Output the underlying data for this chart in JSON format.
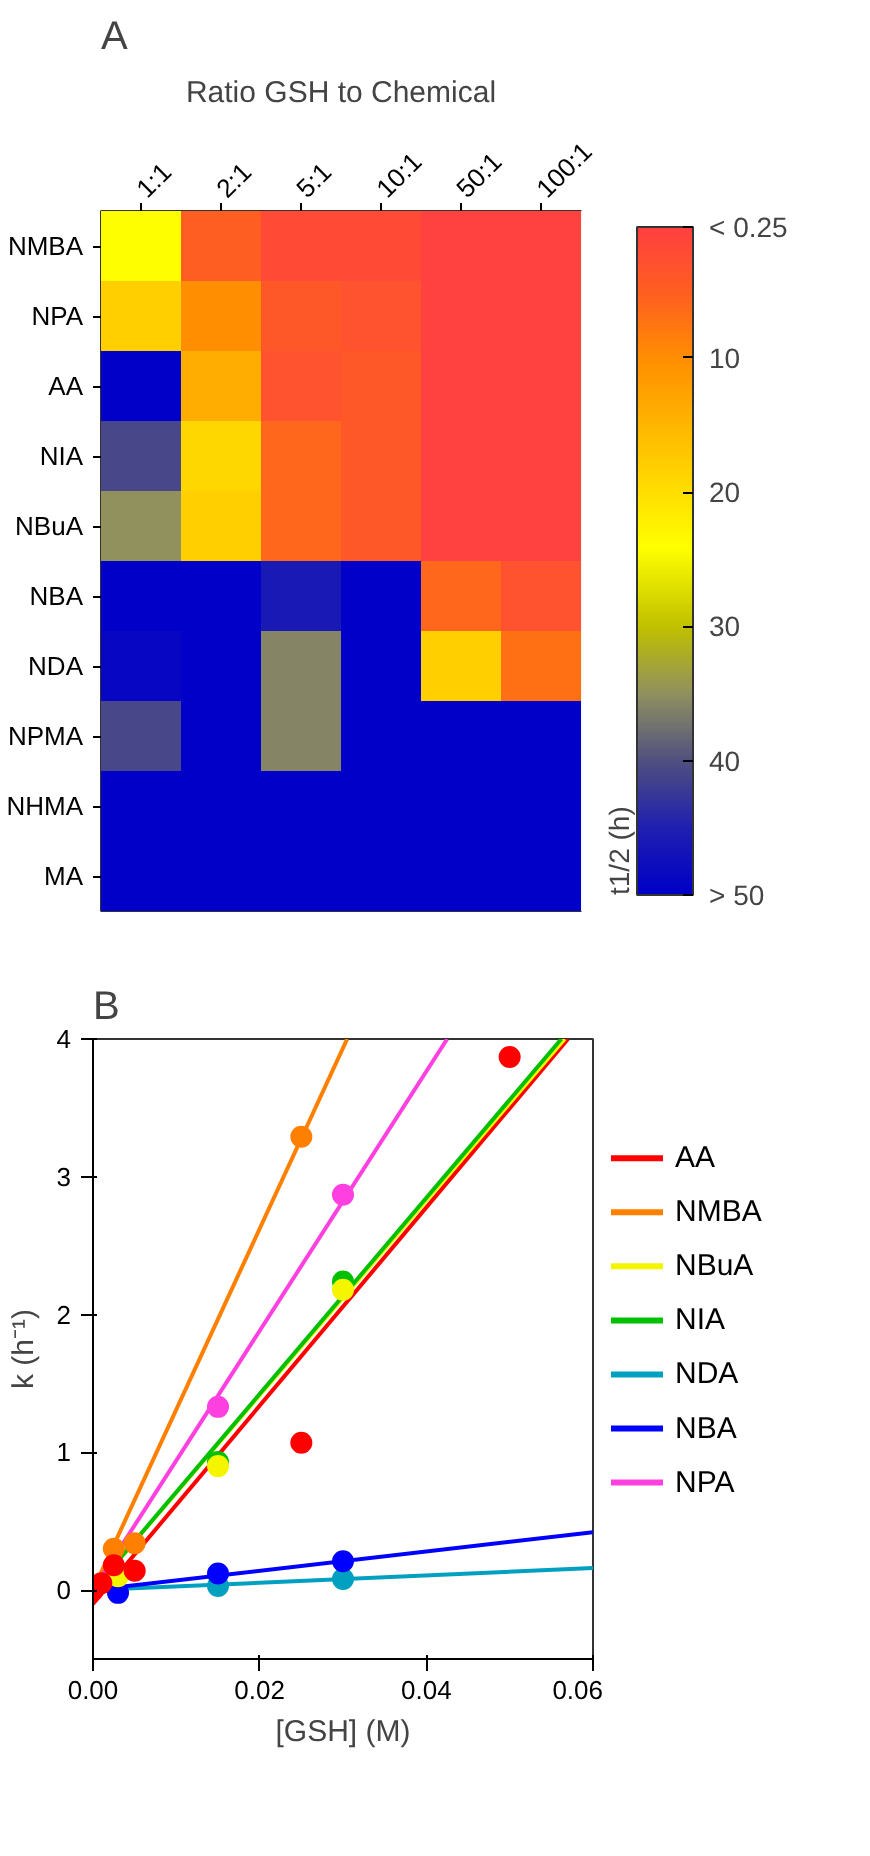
{
  "chart_data": [
    {
      "type": "heatmap",
      "title": "A",
      "xlabel": "Ratio GSH to Chemical",
      "clabel": "t1/2 (h)",
      "categories": [
        "1:1",
        "2:1",
        "5:1",
        "10:1",
        "50:1",
        "100:1"
      ],
      "y_categories": [
        "NMBA",
        "NPA",
        "AA",
        "NIA",
        "NBuA",
        "NBA",
        "NDA",
        "NPMA",
        "NHMA",
        "MA"
      ],
      "cells": [
        [
          24,
          5,
          2,
          2,
          0.5,
          0.5
        ],
        [
          18,
          10,
          4,
          3,
          0.5,
          0.5
        ],
        [
          50,
          14,
          3,
          4,
          0.5,
          0.5
        ],
        [
          41,
          19,
          6,
          4,
          0.5,
          0.5
        ],
        [
          35,
          18,
          6,
          4,
          0.5,
          0.5
        ],
        [
          50,
          50,
          46,
          50,
          6,
          3
        ],
        [
          49,
          50,
          36,
          50,
          18,
          7
        ],
        [
          41,
          50,
          36,
          50,
          50,
          50
        ],
        [
          50,
          50,
          50,
          50,
          50,
          50
        ],
        [
          50,
          50,
          50,
          50,
          50,
          50
        ]
      ],
      "clim": [
        0.25,
        50
      ],
      "cticks": [
        {
          "value": 0.25,
          "label": "< 0.25"
        },
        10,
        20,
        30,
        40,
        {
          "value": 50,
          "label": "> 50"
        }
      ]
    },
    {
      "type": "scatter",
      "title": "B",
      "xlabel": "[GSH] (M)",
      "ylabel": "k (h⁻¹)",
      "xlim": [
        0,
        0.06
      ],
      "ylim": [
        -0.5,
        4
      ],
      "xticks": [
        {
          "value": 0,
          "label": "0.00"
        },
        {
          "value": 0.02,
          "label": "0.02"
        },
        {
          "value": 0.04,
          "label": "0.04"
        },
        {
          "value": 0.06,
          "label": "0.06"
        }
      ],
      "yticks": [
        0,
        1,
        2,
        3,
        4
      ],
      "line_style": "solid",
      "legend": "right",
      "series": [
        {
          "type": "line",
          "name": "AA",
          "color": "#ff0000",
          "x": [
            0,
            0.057
          ],
          "values": [
            -0.1,
            4
          ]
        },
        {
          "type": "line",
          "name": "NMBA",
          "color": "#ff8000",
          "x": [
            0,
            0.0305
          ],
          "values": [
            0,
            4
          ]
        },
        {
          "type": "line",
          "name": "NBuA",
          "color": "#f5f500",
          "x": [
            0,
            0.0566
          ],
          "values": [
            0,
            4
          ]
        },
        {
          "type": "line",
          "name": "NIA",
          "color": "#00c000",
          "x": [
            0,
            0.0562
          ],
          "values": [
            0,
            4
          ]
        },
        {
          "type": "line",
          "name": "NDA",
          "color": "#00a0c0",
          "x": [
            0,
            0.06
          ],
          "values": [
            0,
            0.16
          ]
        },
        {
          "type": "line",
          "name": "NBA",
          "color": "#0000ff",
          "x": [
            0,
            0.06
          ],
          "values": [
            0,
            0.42
          ]
        },
        {
          "type": "line",
          "name": "NPA",
          "color": "#ff40e0",
          "x": [
            0,
            0.0425
          ],
          "values": [
            0,
            4
          ]
        },
        {
          "type": "scatter",
          "marker": "circle",
          "color": "#00a0c0",
          "x": [
            0.015,
            0.03
          ],
          "values": [
            0.03,
            0.08
          ]
        },
        {
          "type": "scatter",
          "marker": "circle",
          "color": "#0000ff",
          "x": [
            0.003,
            0.015,
            0.03
          ],
          "values": [
            -0.02,
            0.12,
            0.21
          ]
        },
        {
          "type": "scatter",
          "marker": "circle",
          "color": "#00c000",
          "x": [
            0.015,
            0.03
          ],
          "values": [
            0.93,
            2.24
          ]
        },
        {
          "type": "scatter",
          "marker": "circle",
          "color": "#f5f500",
          "x": [
            0.003,
            0.015,
            0.03
          ],
          "values": [
            0.1,
            0.9,
            2.18
          ]
        },
        {
          "type": "scatter",
          "marker": "circle",
          "color": "#ff40e0",
          "x": [
            0.015,
            0.03
          ],
          "values": [
            1.33,
            2.87
          ]
        },
        {
          "type": "scatter",
          "marker": "circle",
          "color": "#ff8000",
          "x": [
            0.0025,
            0.005,
            0.025
          ],
          "values": [
            0.3,
            0.34,
            3.29
          ]
        },
        {
          "type": "scatter",
          "marker": "circle",
          "color": "#ff0000",
          "x": [
            0,
            0.001,
            0.0025,
            0.005,
            0.025,
            0.05
          ],
          "values": [
            0.0,
            0.05,
            0.18,
            0.14,
            1.07,
            3.87
          ]
        }
      ]
    }
  ]
}
